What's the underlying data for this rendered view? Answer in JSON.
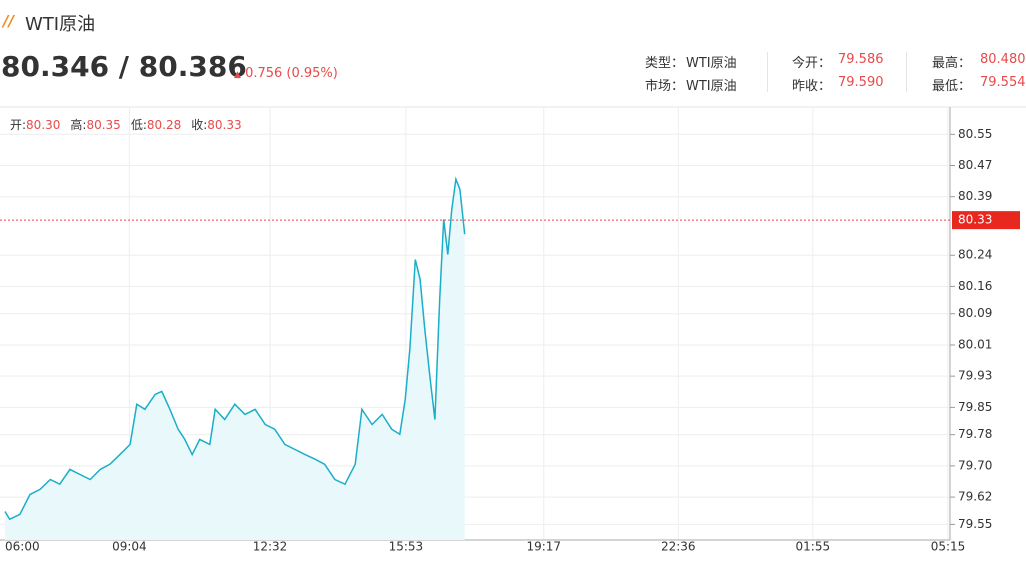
{
  "header": {
    "title": "WTI原油",
    "price": "80.346 / 80.386",
    "change": "0.756 (0.95%)",
    "info": [
      {
        "label": "类型：",
        "value": "WTI原油"
      },
      {
        "label": "今开：",
        "value": "79.586"
      },
      {
        "label": "最高：",
        "value": "80.480"
      },
      {
        "label": "市场：",
        "value": "WTI原油"
      },
      {
        "label": "昨收：",
        "value": "79.590"
      },
      {
        "label": "最低：",
        "value": "79.554"
      }
    ]
  },
  "chart_data": {
    "type": "area",
    "ohlc": [
      {
        "label": "开:",
        "value": "80.30"
      },
      {
        "label": "高:",
        "value": "80.35"
      },
      {
        "label": "低:",
        "value": "80.28"
      },
      {
        "label": "收:",
        "value": "80.33"
      }
    ],
    "x": [
      0,
      7,
      22,
      37,
      52,
      67,
      81,
      96,
      111,
      126,
      141,
      155,
      170,
      185,
      195,
      207,
      222,
      232,
      244,
      256,
      266,
      277,
      288,
      303,
      311,
      325,
      340,
      355,
      370,
      385,
      399,
      414,
      429,
      444,
      459,
      473,
      488,
      503,
      518,
      528,
      543,
      558,
      572,
      584,
      592,
      599,
      607,
      614,
      621,
      629,
      636,
      643,
      649,
      655,
      661,
      667,
      673,
      680
    ],
    "series": [
      {
        "color": "#1aaec8",
        "values": [
          79.583,
          79.563,
          79.576,
          79.627,
          79.64,
          79.665,
          79.653,
          79.691,
          79.678,
          79.665,
          79.691,
          79.704,
          79.729,
          79.755,
          79.858,
          79.845,
          79.883,
          79.891,
          79.845,
          79.794,
          79.768,
          79.729,
          79.768,
          79.755,
          79.845,
          79.819,
          79.858,
          79.832,
          79.845,
          79.806,
          79.794,
          79.755,
          79.742,
          79.729,
          79.717,
          79.704,
          79.665,
          79.653,
          79.704,
          79.845,
          79.806,
          79.832,
          79.794,
          79.781,
          79.87,
          80.001,
          80.229,
          80.178,
          80.05,
          79.922,
          79.819,
          80.127,
          80.332,
          80.242,
          80.358,
          80.435,
          80.409,
          80.294
        ]
      }
    ],
    "xlim": [
      0,
      1395
    ],
    "xticks": [
      {
        "value": 0,
        "label": "06:00"
      },
      {
        "value": 184,
        "label": "09:04"
      },
      {
        "value": 392,
        "label": "12:32"
      },
      {
        "value": 593,
        "label": "15:53"
      },
      {
        "value": 797,
        "label": "19:17"
      },
      {
        "value": 996,
        "label": "22:36"
      },
      {
        "value": 1195,
        "label": "01:55"
      },
      {
        "value": 1395,
        "label": "05:15"
      }
    ],
    "ylim": [
      79.51,
      80.62
    ],
    "yticks": [
      80.55,
      80.47,
      80.39,
      80.24,
      80.16,
      80.09,
      80.01,
      79.93,
      79.85,
      79.78,
      {
        "value": 79.7,
        "label": "79.70"
      },
      79.62,
      79.55
    ],
    "current": 80.33,
    "grid": true
  }
}
